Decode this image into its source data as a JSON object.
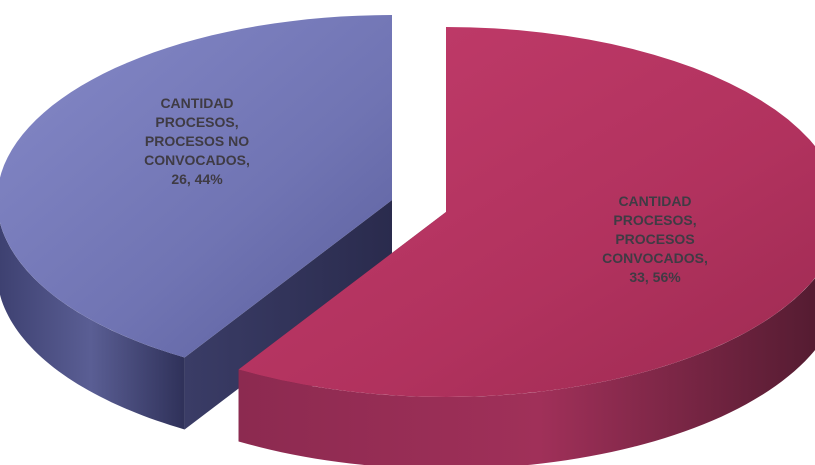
{
  "chart_data": {
    "type": "pie",
    "title": "",
    "series_name": "CANTIDAD PROCESOS",
    "categories": [
      "PROCESOS NO CONVOCADOS",
      "PROCESOS CONVOCADOS"
    ],
    "values": [
      26,
      33
    ],
    "percents": [
      44,
      56
    ],
    "colors": [
      "#7377b5",
      "#b4325f"
    ],
    "labels": [
      {
        "lines": [
          "CANTIDAD",
          "PROCESOS,",
          "PROCESOS NO",
          "CONVOCADOS,",
          "26, 44%"
        ]
      },
      {
        "lines": [
          "CANTIDAD",
          "PROCESOS,",
          "PROCESOS",
          "CONVOCADOS,",
          "33, 56%"
        ]
      }
    ],
    "style": "3d-exploded"
  }
}
